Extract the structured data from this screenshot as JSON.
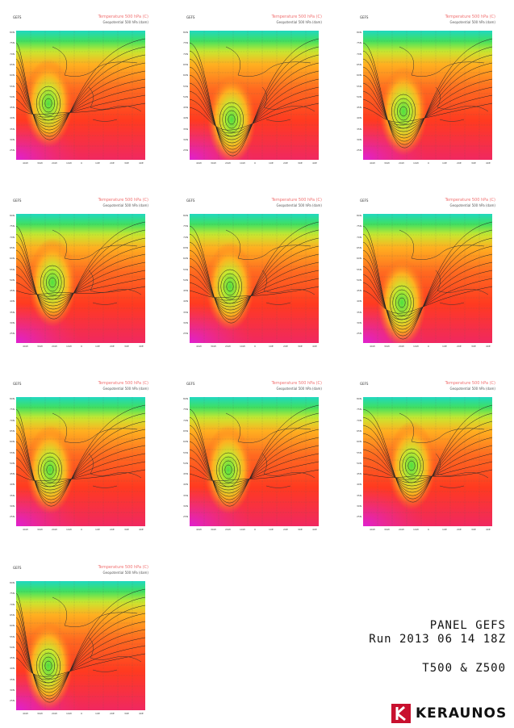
{
  "panel_header": {
    "model": "GEFS",
    "sub": "",
    "valid": "",
    "title": "Temperature 500 hPa (C)",
    "title2": "Geopotential 500 hPa (dam)",
    "ylabel": "",
    "footer1": "",
    "footer2": ""
  },
  "panels": [
    {
      "id": "1",
      "low": [
        40,
        90
      ]
    },
    {
      "id": "2",
      "low": [
        52,
        110
      ]
    },
    {
      "id": "3",
      "low": [
        50,
        100
      ]
    },
    {
      "id": "4",
      "low": [
        45,
        85
      ]
    },
    {
      "id": "5",
      "low": [
        50,
        90
      ]
    },
    {
      "id": "6",
      "low": [
        48,
        110
      ]
    },
    {
      "id": "7",
      "low": [
        42,
        90
      ]
    },
    {
      "id": "8",
      "low": [
        48,
        90
      ]
    },
    {
      "id": "9",
      "low": [
        60,
        85
      ]
    },
    {
      "id": "10",
      "low": [
        40,
        105
      ]
    }
  ],
  "lat_ticks": [
    "80N",
    "75N",
    "70N",
    "65N",
    "60N",
    "55N",
    "50N",
    "45N",
    "40N",
    "35N",
    "30N",
    "25N"
  ],
  "lon_ticks": [
    "40W",
    "30W",
    "20W",
    "10W",
    "0",
    "10E",
    "20E",
    "30E",
    "40E"
  ],
  "block": {
    "title": "PANEL GEFS",
    "run": "Run 2013 06 14 18Z",
    "field": "T500 & Z500"
  },
  "logo": {
    "name": "KERAUNOS",
    "icon": "keraunos-logo-icon",
    "color": "#c8102e"
  }
}
